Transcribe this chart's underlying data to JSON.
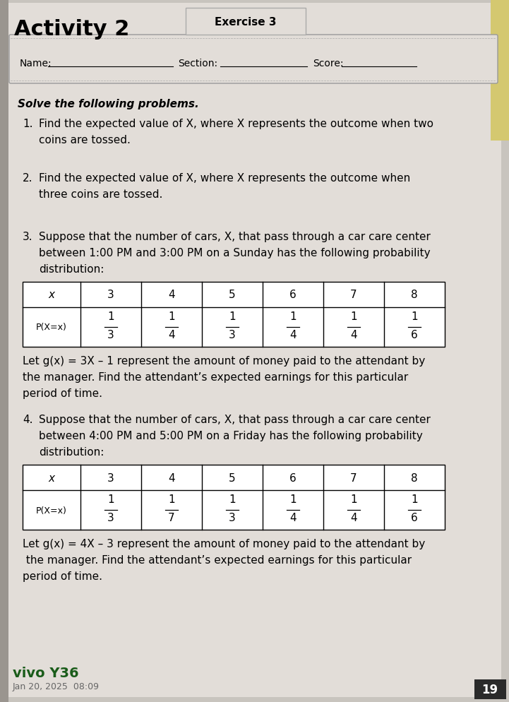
{
  "bg_color": "#c8c4be",
  "page_color": "#e2ddd8",
  "title_activity": "Activity 2",
  "title_exercise": "Exercise 3",
  "name_label": "Name:",
  "section_label": "Section:",
  "score_label": "Score:",
  "solve_text": "Solve the following problems.",
  "q1_text": "Find the expected value of X, where X represents the outcome when two\n   coins are tossed.",
  "q2_text": "Find the expected value of X, where X represents the outcome when\n   three coins are tossed.",
  "q3_intro": "Suppose that the number of cars, X, that pass through a car care center\n   between 1:00 PM and 3:00 PM on a Sunday has the following probability\n   distribution:",
  "q3_table_x": [
    "x",
    "3",
    "4",
    "5",
    "6",
    "7",
    "8"
  ],
  "q3_table_p": [
    "P(X=x)",
    "1/3",
    "1/4",
    "1/3",
    "1/4",
    "1/4",
    "1/6"
  ],
  "q3_gx": "Let g(x) = 3X – 1 represent the amount of money paid to the attendant by\nthe manager. Find the attendant’s expected earnings for this particular\nperiod of time.",
  "q4_intro": "Suppose that the number of cars, X, that pass through a car care center\n   between 4:00 PM and 5:00 PM on a Friday has the following probability\n   distribution:",
  "q4_table_x": [
    "x",
    "3",
    "4",
    "5",
    "6",
    "7",
    "8"
  ],
  "q4_table_p": [
    "P(X=x)",
    "1/3",
    "1/7",
    "1/3",
    "1/4",
    "1/4",
    "1/6"
  ],
  "q4_gx": "Let g(x) = 4X – 3 represent the amount of money paid to the attendant by\n the manager. Find the attendant’s expected earnings for this particular\nperiod of time.",
  "footer_brand": "vivo Y36",
  "footer_date": "Jan 20, 2025  08:09",
  "page_num": "19"
}
